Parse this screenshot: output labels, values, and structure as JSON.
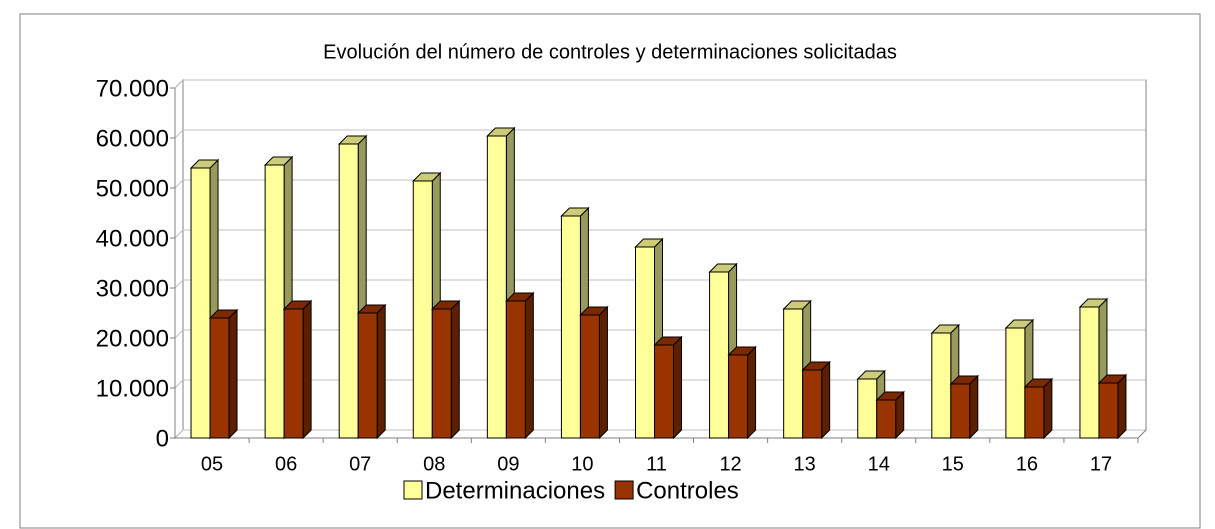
{
  "chart_data": {
    "type": "bar3d",
    "title": "Evolución del número de controles y determinaciones solicitadas",
    "categories": [
      "05",
      "06",
      "07",
      "08",
      "09",
      "10",
      "11",
      "12",
      "13",
      "14",
      "15",
      "16",
      "17"
    ],
    "series": [
      {
        "name": "Determinaciones",
        "color": "#ffff99",
        "values": [
          54000,
          54600,
          58800,
          51400,
          60400,
          44400,
          38200,
          33200,
          25800,
          11800,
          21000,
          22000,
          26200
        ]
      },
      {
        "name": "Controles",
        "color": "#993300",
        "values": [
          24000,
          25800,
          25000,
          25800,
          27400,
          24600,
          18600,
          16600,
          13600,
          7600,
          10800,
          10200,
          11000
        ]
      }
    ],
    "ylim": [
      0,
      70000
    ],
    "yticks": [
      0,
      {
        "value": 10000,
        "label": "10.000"
      },
      {
        "value": 20000,
        "label": "20.000"
      },
      {
        "value": 30000,
        "label": "30.000"
      },
      {
        "value": 40000,
        "label": "40.000"
      },
      {
        "value": 50000,
        "label": "50.000"
      },
      {
        "value": 60000,
        "label": "60.000"
      },
      {
        "value": 70000,
        "label": "70.000"
      }
    ],
    "grid": true,
    "legend": "bottom"
  }
}
